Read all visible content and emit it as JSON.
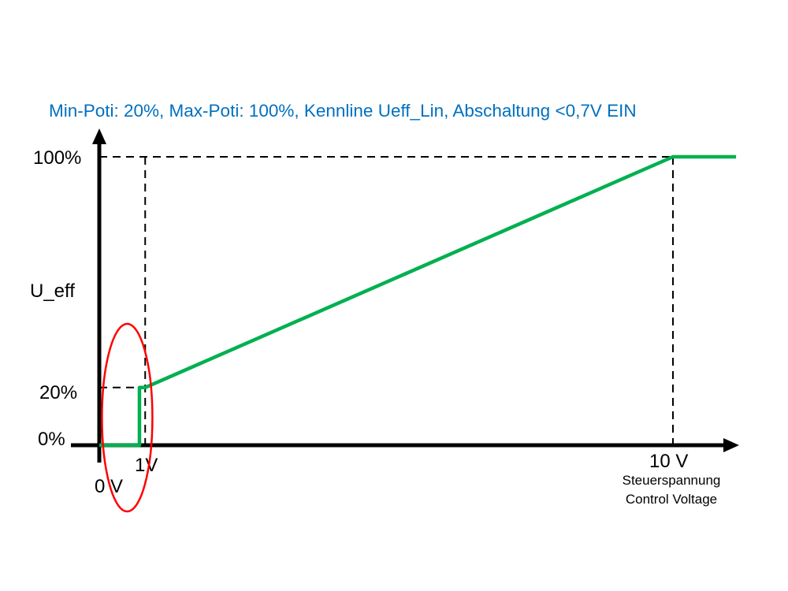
{
  "chart_data": {
    "type": "line",
    "title": "Min-Poti: 20%, Max-Poti: 100%, Kennline Ueff_Lin, Abschaltung <0,7V EIN",
    "ylabel": "U_eff",
    "xlabel_lines": [
      "Steuerspannung",
      "Control Voltage"
    ],
    "x_ticks": [
      {
        "value": 0,
        "label": "0 V"
      },
      {
        "value": 1,
        "label": "1V"
      },
      {
        "value": 10,
        "label": "10 V"
      }
    ],
    "y_ticks": [
      {
        "value": 0,
        "label": "0%"
      },
      {
        "value": 20,
        "label": "20%"
      },
      {
        "value": 100,
        "label": "100%"
      }
    ],
    "series": [
      {
        "color": "#00b050",
        "x": [
          0,
          0.7,
          0.7,
          0.8,
          10,
          11.1
        ],
        "y": [
          0,
          0,
          20,
          20,
          100,
          100
        ]
      }
    ],
    "reference_lines": [
      {
        "from": [
          0,
          100
        ],
        "to": [
          10,
          100
        ]
      },
      {
        "from": [
          10,
          100
        ],
        "to": [
          10,
          0
        ]
      },
      {
        "from": [
          0,
          20
        ],
        "to": [
          0.8,
          20
        ]
      },
      {
        "from": [
          0.8,
          100
        ],
        "to": [
          0.8,
          0
        ]
      }
    ],
    "annotation": {
      "type": "ellipse",
      "color": "#ff0000",
      "around_x": [
        0,
        1
      ]
    },
    "title_color": "#0070c0",
    "axis_color": "#000000",
    "grid": false,
    "legend": "none"
  }
}
